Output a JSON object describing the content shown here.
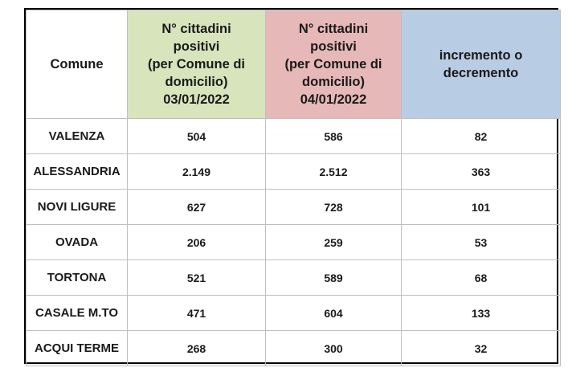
{
  "headers": {
    "comune": "Comune",
    "date1": [
      "N° cittadini",
      "positivi",
      "(per Comune di",
      "domicilio)",
      "03/01/2022"
    ],
    "date2": [
      "N° cittadini",
      "positivi",
      "(per Comune di",
      "domicilio)",
      "04/01/2022"
    ],
    "delta": [
      "incremento o",
      "decremento"
    ]
  },
  "rows": [
    {
      "comune": "VALENZA",
      "d1": "504",
      "d2": "586",
      "delta": "82"
    },
    {
      "comune": "ALESSANDRIA",
      "d1": "2.149",
      "d2": "2.512",
      "delta": "363"
    },
    {
      "comune": "NOVI LIGURE",
      "d1": "627",
      "d2": "728",
      "delta": "101"
    },
    {
      "comune": "OVADA",
      "d1": "206",
      "d2": "259",
      "delta": "53"
    },
    {
      "comune": "TORTONA",
      "d1": "521",
      "d2": "589",
      "delta": "68"
    },
    {
      "comune": "CASALE M.TO",
      "d1": "471",
      "d2": "604",
      "delta": "133"
    },
    {
      "comune": "ACQUI TERME",
      "d1": "268",
      "d2": "300",
      "delta": "32"
    }
  ],
  "colors": {
    "header_date1": "#d8e4bc",
    "header_date2": "#e6b8b7",
    "header_delta": "#b8cce4",
    "delta_text": "#e02020"
  }
}
